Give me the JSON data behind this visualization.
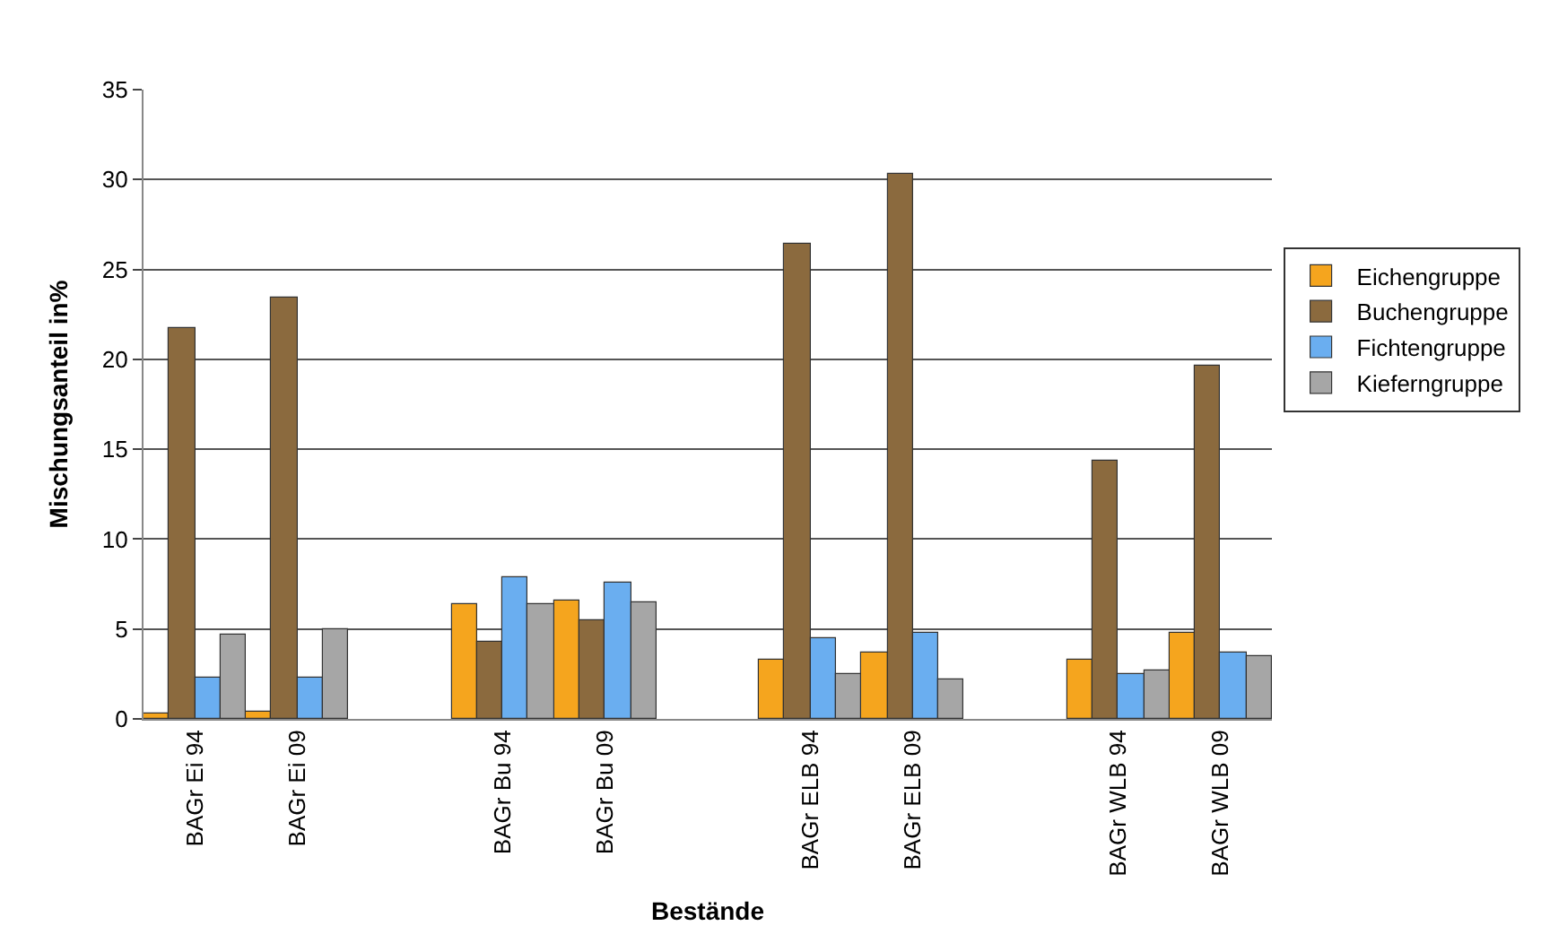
{
  "chart_data": {
    "type": "bar",
    "xlabel": "Bestände",
    "ylabel": "Mischungsanteil in%",
    "categories": [
      "BAGr Ei 94",
      "BAGr Ei 09",
      null,
      "BAGr Bu 94",
      "BAGr Bu 09",
      null,
      "BAGr ELB 94",
      "BAGr ELB 09",
      null,
      "BAGr WLB 94",
      "BAGr WLB 09"
    ],
    "series": [
      {
        "name": "Eichengruppe",
        "color": "#f5a51e",
        "values": [
          0.3,
          0.4,
          null,
          6.4,
          6.6,
          null,
          3.3,
          3.7,
          null,
          3.3,
          4.8
        ]
      },
      {
        "name": "Buchengruppe",
        "color": "#8b6a3e",
        "values": [
          21.7,
          23.4,
          null,
          4.3,
          5.5,
          null,
          26.4,
          30.3,
          null,
          14.4,
          19.6
        ]
      },
      {
        "name": "Fichtengruppe",
        "color": "#6aaef0",
        "values": [
          2.3,
          2.3,
          null,
          7.9,
          7.6,
          null,
          4.5,
          4.8,
          null,
          2.5,
          3.7
        ]
      },
      {
        "name": "Kieferngruppe",
        "color": "#a6a6a6",
        "values": [
          4.7,
          5.0,
          null,
          6.4,
          6.5,
          null,
          2.5,
          2.2,
          null,
          2.7,
          3.5
        ]
      }
    ],
    "ylim": [
      0,
      35
    ],
    "yticks": [
      0,
      5,
      10,
      15,
      20,
      25,
      30,
      35
    ],
    "grid": "y",
    "legend": "right"
  }
}
